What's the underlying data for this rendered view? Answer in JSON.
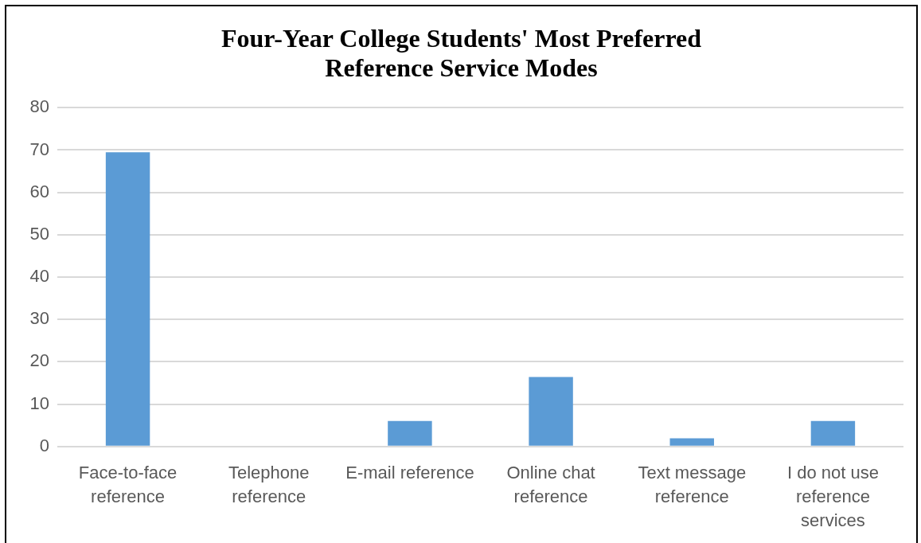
{
  "chart_data": {
    "type": "bar",
    "title": "Four-Year College Students' Most Preferred Reference Service Modes",
    "categories": [
      "Face-to-face reference",
      "Telephone reference",
      "E-mail reference",
      "Online chat reference",
      "Text message reference",
      "I do not use reference services"
    ],
    "values": [
      69.5,
      0,
      6.0,
      16.4,
      1.9,
      6.0
    ],
    "color": "#5b9bd5",
    "ylim": [
      0,
      80
    ],
    "yticks": [
      0,
      10,
      20,
      30,
      40,
      50,
      60,
      70,
      80
    ],
    "grid": "y"
  }
}
